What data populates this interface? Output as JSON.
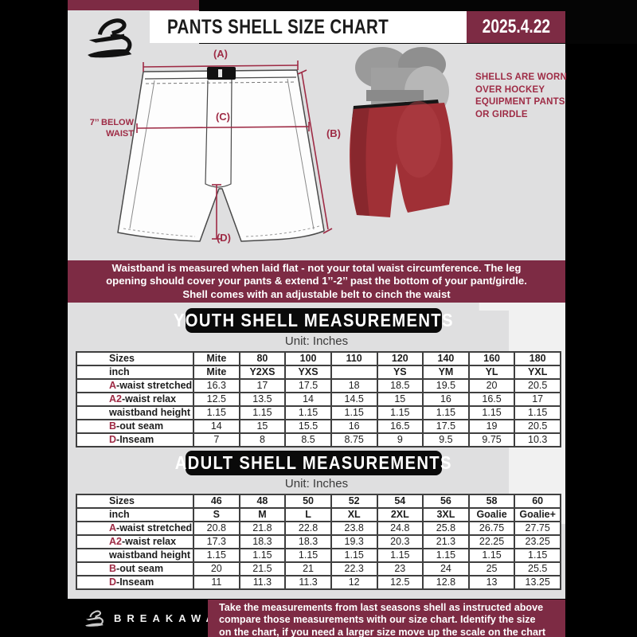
{
  "header": {
    "title": "PANTS SHELL SIZE CHART",
    "date": "2025.4.22"
  },
  "diagram": {
    "label_a": "(A)",
    "label_b": "(B)",
    "label_c": "(C)",
    "label_d": "(D)",
    "below_waist_line1": "7’’ BELOW",
    "below_waist_line2": "WAIST",
    "caption_lines": [
      "SHELLS ARE WORN",
      "OVER HOCKEY",
      "EQUIPMENT PANTS",
      "OR GIRDLE"
    ]
  },
  "notice": {
    "lines": [
      "Waistband is measured when laid flat - not your total waist circumference. The leg",
      "opening should cover your pants & extend 1’’-2’’ past the bottom of your pant/girdle.",
      "Shell comes with an adjustable belt to cinch the waist"
    ]
  },
  "youth": {
    "heading": "YOUTH SHELL MEASUREMENTS",
    "unit": "Unit: Inches",
    "table_rows": [
      {
        "label": "Sizes",
        "header": true,
        "values": [
          "Mite",
          "80",
          "100",
          "110",
          "120",
          "140",
          "160",
          "180"
        ]
      },
      {
        "label": "inch",
        "header": true,
        "values": [
          "Mite",
          "Y2XS",
          "YXS",
          "",
          "YS",
          "YM",
          "YL",
          "YXL"
        ]
      },
      {
        "prefix": "A",
        "label": "-waist stretched",
        "values": [
          "16.3",
          "17",
          "17.5",
          "18",
          "18.5",
          "19.5",
          "20",
          "20.5"
        ]
      },
      {
        "prefix": "A2",
        "label": "-waist relax",
        "values": [
          "12.5",
          "13.5",
          "14",
          "14.5",
          "15",
          "16",
          "16.5",
          "17"
        ]
      },
      {
        "label": "waistband height",
        "values": [
          "1.15",
          "1.15",
          "1.15",
          "1.15",
          "1.15",
          "1.15",
          "1.15",
          "1.15"
        ]
      },
      {
        "prefix": "B",
        "label": "-out seam",
        "values": [
          "14",
          "15",
          "15.5",
          "16",
          "16.5",
          "17.5",
          "19",
          "20.5"
        ]
      },
      {
        "prefix": "D",
        "label": "-Inseam",
        "values": [
          "7",
          "8",
          "8.5",
          "8.75",
          "9",
          "9.5",
          "9.75",
          "10.3"
        ]
      }
    ]
  },
  "adult": {
    "heading": "ADULT SHELL MEASUREMENTS",
    "unit": "Unit: Inches",
    "table_rows": [
      {
        "label": "Sizes",
        "header": true,
        "values": [
          "46",
          "48",
          "50",
          "52",
          "54",
          "56",
          "58",
          "60"
        ]
      },
      {
        "label": "inch",
        "header": true,
        "values": [
          "S",
          "M",
          "L",
          "XL",
          "2XL",
          "3XL",
          "Goalie",
          "Goalie+"
        ]
      },
      {
        "prefix": "A",
        "label": "-waist stretched",
        "values": [
          "20.8",
          "21.8",
          "22.8",
          "23.8",
          "24.8",
          "25.8",
          "26.75",
          "27.75"
        ]
      },
      {
        "prefix": "A2",
        "label": "-waist relax",
        "values": [
          "17.3",
          "18.3",
          "18.3",
          "19.3",
          "20.3",
          "21.3",
          "22.25",
          "23.25"
        ]
      },
      {
        "label": "waistband height",
        "values": [
          "1.15",
          "1.15",
          "1.15",
          "1.15",
          "1.15",
          "1.15",
          "1.15",
          "1.15"
        ]
      },
      {
        "prefix": "B",
        "label": "-out seam",
        "values": [
          "20",
          "21.5",
          "21",
          "22.3",
          "23",
          "24",
          "25",
          "25.5"
        ]
      },
      {
        "prefix": "D",
        "label": "-Inseam",
        "values": [
          "11",
          "11.3",
          "11.3",
          "12",
          "12.5",
          "12.8",
          "13",
          "13.25"
        ]
      }
    ]
  },
  "footer": {
    "brand": "BREAKAWAY",
    "lines": [
      "Take the measurements from last seasons shell as instructed above",
      "compare those measurements with our size chart. Identify the size",
      "on the chart, if you need a larger size move up the scale on the chart"
    ]
  },
  "colors": {
    "maroon": "#7d2b44",
    "maroon_bright": "#9e2b45",
    "background_gray": "#dfdfe0",
    "shell_red": "#a03036"
  }
}
